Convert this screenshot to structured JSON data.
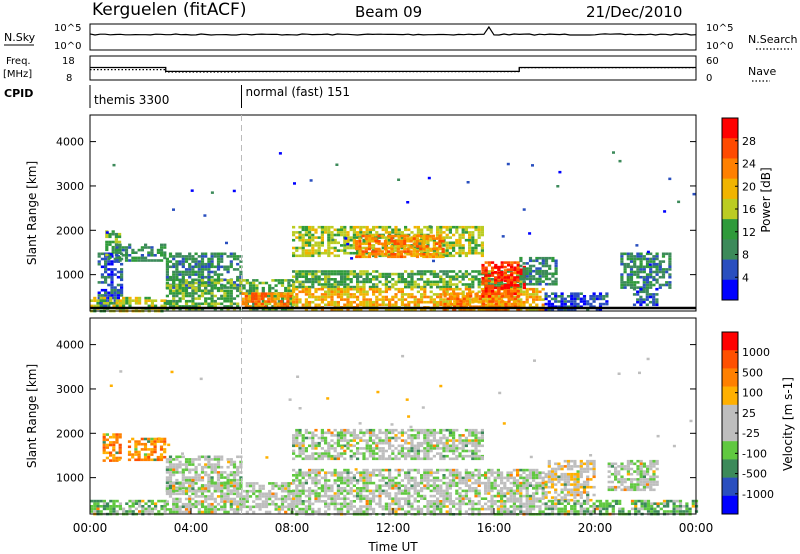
{
  "header": {
    "station": "Kerguelen (fitACF)",
    "beam": "Beam 09",
    "date": "21/Dec/2010"
  },
  "top_panels": {
    "nsky": {
      "label": "N.Sky",
      "right_label": "N.Search",
      "ticks_left": [
        "10^5",
        "10^0"
      ],
      "ticks_right": [
        "10^5",
        "10^0"
      ]
    },
    "freq": {
      "label_line1": "Freq.",
      "label_line2": "[MHz]",
      "ticks_left": [
        "18",
        "8"
      ],
      "ticks_right": [
        "60",
        "0"
      ],
      "right_label": "Nave",
      "freq_steps": [
        {
          "from_hour": 0,
          "to_hour": 3.0,
          "value": 13.2
        },
        {
          "from_hour": 3.0,
          "to_hour": 17.0,
          "value": 11.6
        },
        {
          "from_hour": 17.0,
          "to_hour": 24.0,
          "value": 13.2
        }
      ],
      "nave_steps": [
        {
          "from_hour": 0,
          "to_hour": 3.0,
          "value": 26
        },
        {
          "from_hour": 3.0,
          "to_hour": 6.0,
          "value": 20
        },
        {
          "from_hour": 6.0,
          "to_hour": 17.0,
          "value": 21
        },
        {
          "from_hour": 17.0,
          "to_hour": 24.0,
          "value": 31
        }
      ]
    },
    "cpid": {
      "label": "CPID",
      "entries": [
        {
          "name": "themis 3300",
          "start_hour": 0
        },
        {
          "name": "normal (fast) 151",
          "start_hour": 6.0
        }
      ]
    }
  },
  "colors": {
    "power": [
      "#0000ff",
      "#2a4fbf",
      "#3c8a5a",
      "#2f9a3a",
      "#bbcc22",
      "#f0b400",
      "#ff8000",
      "#ff4a00",
      "#ff0000"
    ],
    "velocity": [
      "#0000ff",
      "#2a4fbf",
      "#3c8a5a",
      "#60c840",
      "#bebebe",
      "#bebebe",
      "#ffb000",
      "#ff8000",
      "#ff5000",
      "#ff0000"
    ]
  },
  "chart_data": [
    {
      "type": "heatmap",
      "quantity": "Power",
      "ylabel": "Slant Range [km]",
      "yticks": [
        "4000",
        "3000",
        "2000",
        "1000"
      ],
      "ylim": [
        180,
        4600
      ],
      "xlim": [
        0,
        24
      ],
      "colorbar": {
        "label": "Power [dB]",
        "ticks": [
          "28",
          "24",
          "20",
          "16",
          "12",
          "8",
          "4"
        ],
        "range": [
          0,
          32
        ]
      },
      "regions": [
        {
          "x": [
            0.3,
            1.3
          ],
          "y": [
            300,
            1500
          ],
          "level": 1
        },
        {
          "x": [
            0.6,
            1.2
          ],
          "y": [
            1400,
            2000
          ],
          "level": 3
        },
        {
          "x": [
            1.0,
            3.0
          ],
          "y": [
            1300,
            1700
          ],
          "level": 2
        },
        {
          "x": [
            0,
            3.0
          ],
          "y": [
            200,
            500
          ],
          "level": 4
        },
        {
          "x": [
            3.0,
            6.0
          ],
          "y": [
            700,
            1500
          ],
          "level": 2
        },
        {
          "x": [
            3.0,
            8.0
          ],
          "y": [
            200,
            900
          ],
          "level": 3
        },
        {
          "x": [
            6.0,
            8.0
          ],
          "y": [
            300,
            600
          ],
          "level": 6
        },
        {
          "x": [
            8.0,
            15.5
          ],
          "y": [
            1400,
            2100
          ],
          "level": 4
        },
        {
          "x": [
            10.5,
            14.0
          ],
          "y": [
            1400,
            1900
          ],
          "level": 6
        },
        {
          "x": [
            8.0,
            17.0
          ],
          "y": [
            700,
            1100
          ],
          "level": 3
        },
        {
          "x": [
            8.0,
            18.0
          ],
          "y": [
            200,
            700
          ],
          "level": 5
        },
        {
          "x": [
            14.0,
            17.0
          ],
          "y": [
            200,
            600
          ],
          "level": 6
        },
        {
          "x": [
            15.5,
            17.0
          ],
          "y": [
            500,
            1300
          ],
          "level": 7
        },
        {
          "x": [
            16.0,
            17.2
          ],
          "y": [
            700,
            1200
          ],
          "level": 8
        },
        {
          "x": [
            17.0,
            18.5
          ],
          "y": [
            800,
            1400
          ],
          "level": 2
        },
        {
          "x": [
            18.0,
            20.5
          ],
          "y": [
            200,
            600
          ],
          "level": 1
        },
        {
          "x": [
            21.0,
            23.0
          ],
          "y": [
            700,
            1500
          ],
          "level": 2
        },
        {
          "x": [
            21.5,
            22.5
          ],
          "y": [
            300,
            700
          ],
          "level": 1
        }
      ]
    },
    {
      "type": "heatmap",
      "quantity": "Velocity",
      "ylabel": "Slant Range [km]",
      "yticks": [
        "4000",
        "3000",
        "2000",
        "1000"
      ],
      "ylim": [
        180,
        4600
      ],
      "xlim": [
        0,
        24
      ],
      "colorbar": {
        "label": "Velocity [m s-1]",
        "ticks": [
          "1000",
          "500",
          "100",
          "25",
          "-25",
          "-100",
          "-500",
          "-1000"
        ],
        "range": [
          -1000,
          1000
        ]
      },
      "regions": [
        {
          "x": [
            0.5,
            1.2
          ],
          "y": [
            1400,
            2000
          ],
          "level": 7
        },
        {
          "x": [
            1.5,
            3.0
          ],
          "y": [
            1400,
            1900
          ],
          "level": 7
        },
        {
          "x": [
            0,
            3.0
          ],
          "y": [
            200,
            500
          ],
          "level": 3
        },
        {
          "x": [
            3.0,
            6.0
          ],
          "y": [
            700,
            1500
          ],
          "level": 4
        },
        {
          "x": [
            3.0,
            8.0
          ],
          "y": [
            200,
            900
          ],
          "level": 4
        },
        {
          "x": [
            8.0,
            15.5
          ],
          "y": [
            1400,
            2100
          ],
          "level": 4
        },
        {
          "x": [
            8.0,
            18.0
          ],
          "y": [
            200,
            1200
          ],
          "level": 4
        },
        {
          "x": [
            18.0,
            20.0
          ],
          "y": [
            500,
            1400
          ],
          "level": 5
        },
        {
          "x": [
            20.5,
            22.5
          ],
          "y": [
            700,
            1400
          ],
          "level": 4
        },
        {
          "x": [
            18.0,
            24.0
          ],
          "y": [
            200,
            500
          ],
          "level": 3
        }
      ]
    }
  ],
  "xaxis": {
    "label": "Time UT",
    "ticks": [
      "00:00",
      "04:00",
      "08:00",
      "12:00",
      "16:00",
      "20:00",
      "00:00"
    ]
  }
}
